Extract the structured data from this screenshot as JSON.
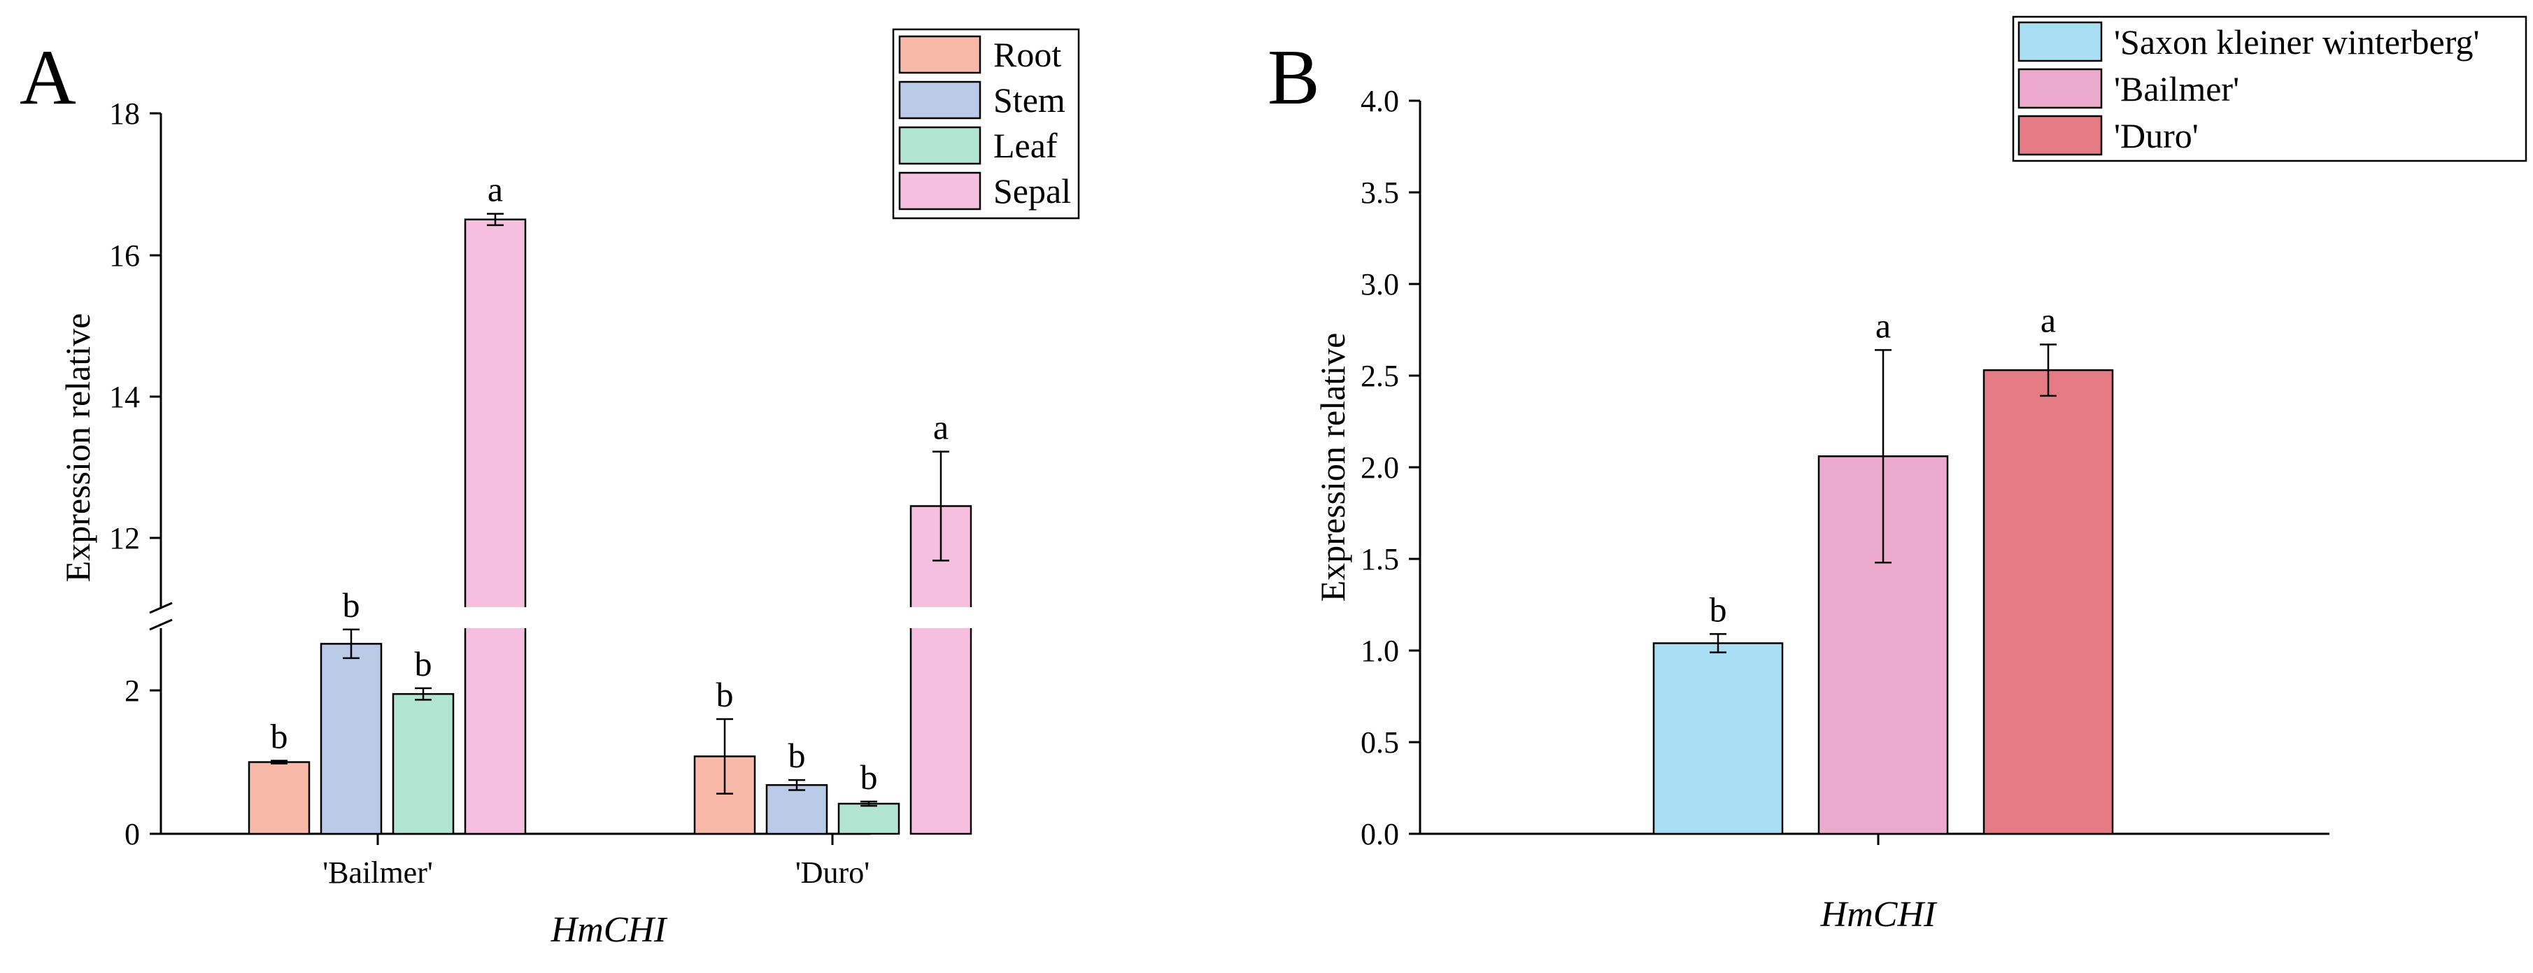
{
  "panels": {
    "A": {
      "label": "A"
    },
    "B": {
      "label": "B"
    }
  },
  "chart_data": [
    {
      "type": "bar",
      "panel": "A",
      "title": "",
      "xlabel": "HmCHI",
      "ylabel": "Expression relative",
      "categories": [
        "'Bailmer'",
        "'Duro'"
      ],
      "series": [
        {
          "name": "Root",
          "color": "#f9b9a8",
          "values": [
            1.0,
            1.08
          ],
          "errors": [
            0.02,
            0.52
          ],
          "labels": [
            "b",
            "b"
          ]
        },
        {
          "name": "Stem",
          "color": "#b9cbe6",
          "values": [
            2.65,
            0.68
          ],
          "errors": [
            0.2,
            0.07
          ],
          "labels": [
            "b",
            "b"
          ]
        },
        {
          "name": "Leaf",
          "color": "#b2e6d2",
          "values": [
            1.95,
            0.42
          ],
          "errors": [
            0.08,
            0.03
          ],
          "labels": [
            "b",
            "b"
          ]
        },
        {
          "name": "Sepal",
          "color": "#f6bedf",
          "values": [
            16.5,
            12.45
          ],
          "errors": [
            0.08,
            0.77
          ],
          "labels": [
            "a",
            "a"
          ]
        }
      ],
      "y_axis_break": [
        2.9,
        10.9
      ],
      "lower_segment": {
        "ylim": [
          0,
          2.9
        ],
        "ticks": [
          "0",
          "2"
        ]
      },
      "upper_segment": {
        "ylim": [
          10.9,
          18
        ],
        "ticks": [
          "12",
          "14",
          "16",
          "18"
        ]
      },
      "legend_position": "top-right",
      "grid": false
    },
    {
      "type": "bar",
      "panel": "B",
      "title": "",
      "xlabel": "HmCHI",
      "ylabel": "Expression relative",
      "categories": [
        "'Saxon kleiner winterberg'",
        "'Bailmer'",
        "'Duro'"
      ],
      "values": [
        1.04,
        2.06,
        2.53
      ],
      "errors": [
        0.05,
        0.58,
        0.14
      ],
      "labels": [
        "b",
        "a",
        "a"
      ],
      "colors": [
        "#a9dff5",
        "#ecabcc",
        "#e57b85"
      ],
      "ylim": [
        0,
        4.0
      ],
      "ticks": [
        "0.0",
        "0.5",
        "1.0",
        "1.5",
        "2.0",
        "2.5",
        "3.0",
        "3.5",
        "4.0"
      ],
      "legend_position": "top-right",
      "grid": false
    }
  ]
}
